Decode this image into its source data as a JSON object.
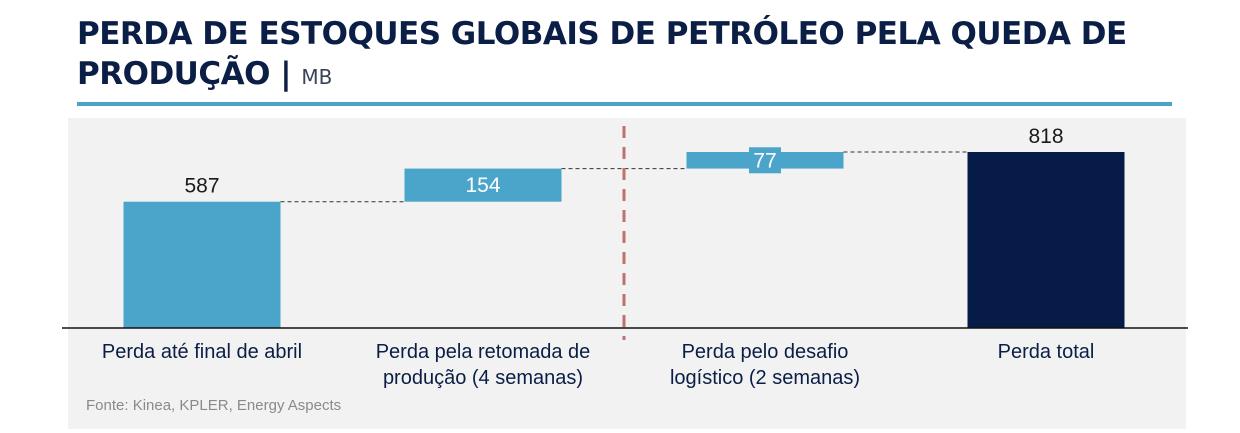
{
  "header": {
    "title": "PERDA DE ESTOQUES GLOBAIS DE PETRÓLEO PELA QUEDA DE PRODUÇÃO",
    "separator": "|",
    "unit": "MB"
  },
  "source": "Fonte: Kinea, KPLER, Energy Aspects",
  "colors": {
    "title": "#0a1e46",
    "rule": "#4aa3c8",
    "bar_light": "#4ba5cb",
    "bar_dark": "#061b47",
    "divider": "#c0706e",
    "panel": "#f2f2f2"
  },
  "chart_data": {
    "type": "bar",
    "subtype": "waterfall",
    "categories": [
      [
        "Perda até final de abril"
      ],
      [
        "Perda pela retomada de",
        "produção (4 semanas)"
      ],
      [
        "Perda pelo desafio",
        "logístico (2 semanas)"
      ],
      [
        "Perda total"
      ]
    ],
    "values": [
      587,
      154,
      77,
      818
    ],
    "kinds": [
      "absolute",
      "increment",
      "increment",
      "total"
    ],
    "labels": [
      "587",
      "154",
      "77",
      "818"
    ],
    "ylim": [
      0,
      818
    ],
    "divider_between": [
      1,
      2
    ],
    "connectors": true,
    "grid": false
  }
}
